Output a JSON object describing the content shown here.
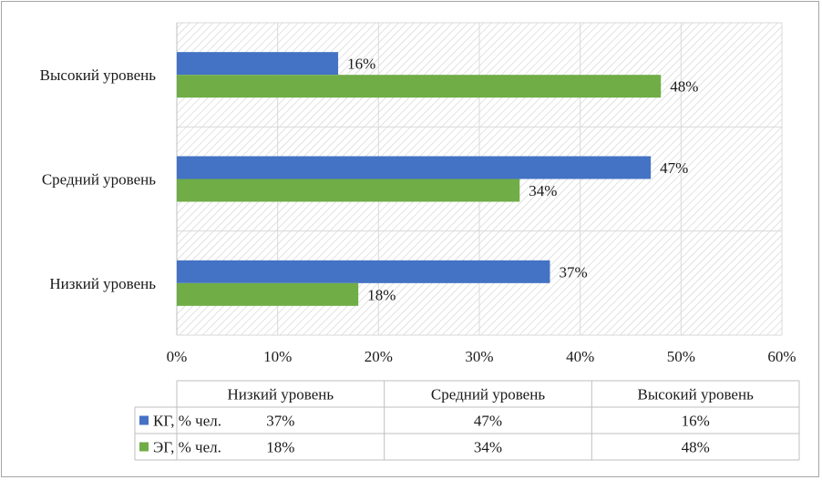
{
  "chart_data": {
    "type": "bar",
    "orientation": "horizontal",
    "categories": [
      "Низкий уровень",
      "Средний уровень",
      "Высокий уровень"
    ],
    "series": [
      {
        "name": "КГ, % чел.",
        "values": [
          37,
          47,
          16
        ],
        "value_labels": [
          "37%",
          "47%",
          "16%"
        ],
        "color": "#4472C4"
      },
      {
        "name": "ЭГ, % чел.",
        "values": [
          18,
          34,
          48
        ],
        "value_labels": [
          "18%",
          "34%",
          "48%"
        ],
        "color": "#70AD47"
      }
    ],
    "xlim": [
      0,
      60
    ],
    "x_ticks": [
      "0%",
      "10%",
      "20%",
      "30%",
      "40%",
      "50%",
      "60%"
    ],
    "grid": true,
    "plot_background": "hatched",
    "data_table": true
  }
}
